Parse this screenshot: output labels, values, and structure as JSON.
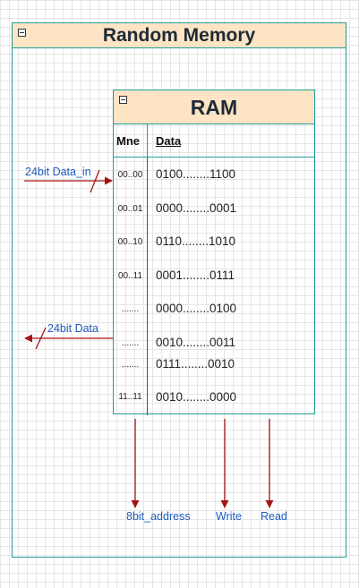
{
  "outer": {
    "title": "Random Memory"
  },
  "ram": {
    "title": "RAM",
    "col_mne": "Mne",
    "col_data": "Data",
    "rows": [
      {
        "mne": "00..00",
        "data": "0100........1100"
      },
      {
        "mne": "00..01",
        "data": "0000........0001"
      },
      {
        "mne": "00..10",
        "data": "0110........1010"
      },
      {
        "mne": "00..11",
        "data": "0001........0111"
      },
      {
        "mne": ".......",
        "data": "0000........0100"
      },
      {
        "mne": ".......",
        "data": "0010........0011"
      },
      {
        "mne": ".......",
        "data": "0111........0010"
      },
      {
        "mne": "11..11",
        "data": "0010........0000"
      }
    ]
  },
  "labels": {
    "data_in": "24bit Data_in",
    "data_out": "24bit Data",
    "address": "8bit_address",
    "write": "Write",
    "read": "Read"
  }
}
